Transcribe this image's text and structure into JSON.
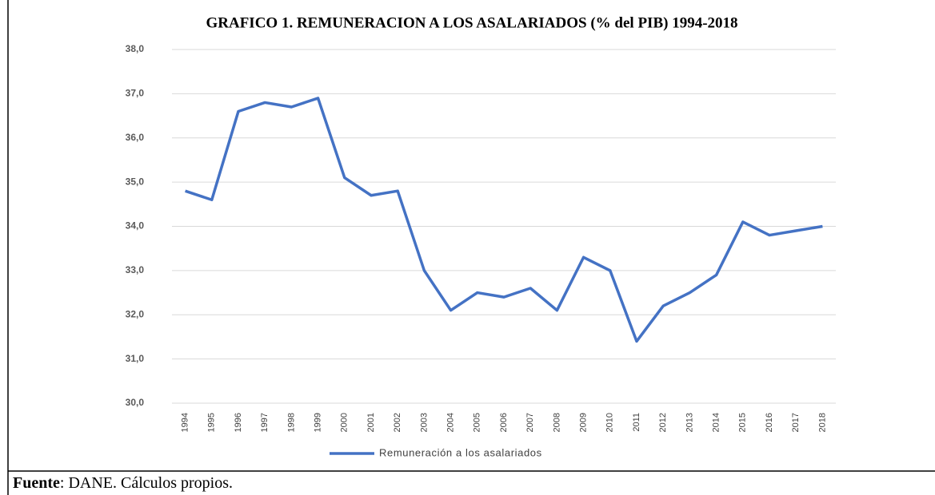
{
  "chart_data": {
    "type": "line",
    "title": "GRAFICO 1. REMUNERACION A LOS ASALARIADOS (% del PIB) 1994-2018",
    "categories": [
      "1994",
      "1995",
      "1996",
      "1997",
      "1998",
      "1999",
      "2000",
      "2001",
      "2002",
      "2003",
      "2004",
      "2005",
      "2006",
      "2007",
      "2008",
      "2009",
      "2010",
      "2011",
      "2012",
      "2013",
      "2014",
      "2015",
      "2016",
      "2017",
      "2018"
    ],
    "series": [
      {
        "name": "Remuneración a los asalariados",
        "color": "#4472c4",
        "values": [
          34.8,
          34.6,
          36.6,
          36.8,
          36.7,
          36.9,
          35.1,
          34.7,
          34.8,
          33.0,
          32.1,
          32.5,
          32.4,
          32.6,
          32.1,
          33.3,
          33.0,
          31.4,
          32.2,
          32.5,
          32.9,
          34.1,
          33.8,
          33.9,
          34.0
        ]
      }
    ],
    "ylim": [
      30,
      38
    ],
    "yticks": [
      {
        "value": 30,
        "label": "30,0"
      },
      {
        "value": 31,
        "label": "31,0"
      },
      {
        "value": 32,
        "label": "32,0"
      },
      {
        "value": 33,
        "label": "33,0"
      },
      {
        "value": 34,
        "label": "34,0"
      },
      {
        "value": 35,
        "label": "35,0"
      },
      {
        "value": 36,
        "label": "36,0"
      },
      {
        "value": 37,
        "label": "37,0"
      },
      {
        "value": 38,
        "label": "38,0"
      }
    ],
    "grid": true,
    "legend": "bottom"
  },
  "source": {
    "label": "Fuente",
    "text": ": DANE. Cálculos propios."
  }
}
